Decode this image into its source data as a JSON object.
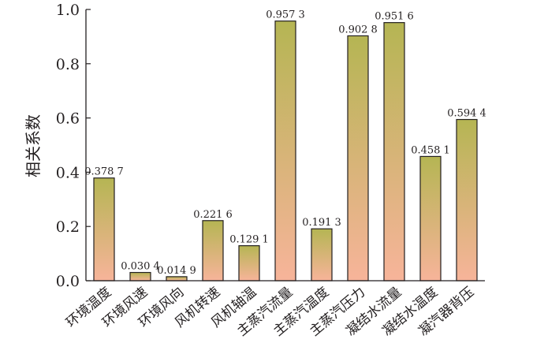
{
  "chart_data": {
    "type": "bar",
    "title": "",
    "xlabel": "",
    "ylabel": "相关系数",
    "ylim": [
      0,
      1.0
    ],
    "yticks": [
      "0.0",
      "0.2",
      "0.4",
      "0.6",
      "0.8",
      "1.0"
    ],
    "grid": false,
    "categories": [
      "环境温度",
      "环境风速",
      "环境风向",
      "风机转速",
      "风机轴温",
      "主蒸汽流量",
      "主蒸汽温度",
      "主蒸汽压力",
      "凝结水流量",
      "凝结水温度",
      "凝汽器背压"
    ],
    "values": [
      0.3787,
      0.0304,
      0.0149,
      0.2216,
      0.1291,
      0.9573,
      0.1913,
      0.9028,
      0.9516,
      0.4581,
      0.5944
    ],
    "value_labels": [
      "0.378 7",
      "0.030 4",
      "0.014 9",
      "0.221 6",
      "0.129 1",
      "0.957 3",
      "0.191 3",
      "0.902 8",
      "0.951 6",
      "0.458 1",
      "0.594 4"
    ],
    "colors": {
      "bar_top": "#b5b553",
      "bar_bottom": "#f7b49a",
      "bar_stroke": "#231f20",
      "axis": "#231f20"
    }
  }
}
